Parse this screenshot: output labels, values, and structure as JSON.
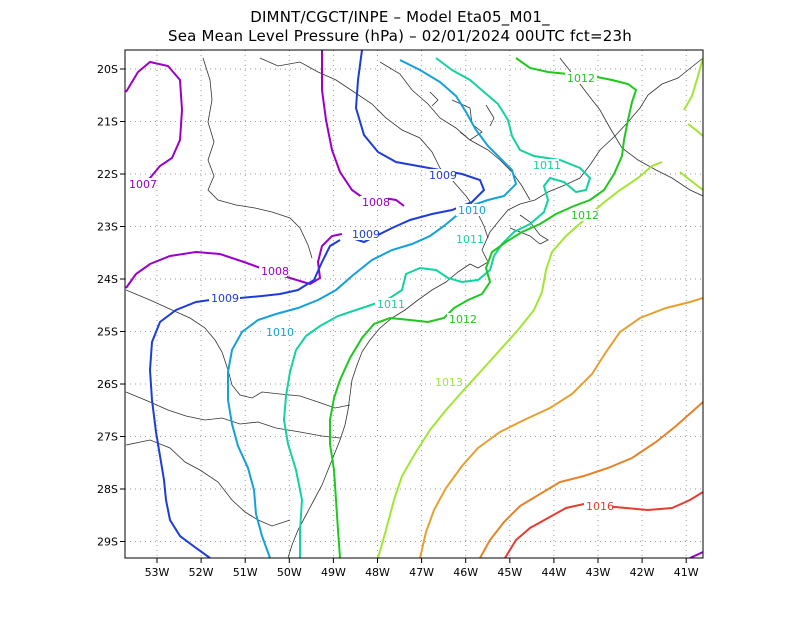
{
  "title": {
    "line1": "DIMNT/CGCT/INPE –  Model Eta05_M01_",
    "line2": "Sea Mean Level Pressure (hPa) – 02/01/2024 00UTC fct=23h"
  },
  "map": {
    "lon_ticks": [
      "53W",
      "52W",
      "51W",
      "50W",
      "49W",
      "48W",
      "47W",
      "46W",
      "45W",
      "44W",
      "43W",
      "42W",
      "41W"
    ],
    "lat_ticks": [
      "20S",
      "21S",
      "22S",
      "23S",
      "24S",
      "25S",
      "26S",
      "27S",
      "28S",
      "29S"
    ],
    "contour_labels": [
      {
        "text": "1007",
        "color": "#9b00c8"
      },
      {
        "text": "1008",
        "color": "#9b00c8"
      },
      {
        "text": "1008",
        "color": "#9b00c8"
      },
      {
        "text": "1009",
        "color": "#1e3cd8"
      },
      {
        "text": "1009",
        "color": "#1e3cd8"
      },
      {
        "text": "1009",
        "color": "#1e3cd8"
      },
      {
        "text": "1010",
        "color": "#14a0dc"
      },
      {
        "text": "1010",
        "color": "#14a0dc"
      },
      {
        "text": "1011",
        "color": "#14d2a0"
      },
      {
        "text": "1011",
        "color": "#14d2a0"
      },
      {
        "text": "1011",
        "color": "#14d2a0"
      },
      {
        "text": "1012",
        "color": "#1ec81e"
      },
      {
        "text": "1012",
        "color": "#1ec81e"
      },
      {
        "text": "1012",
        "color": "#1ec81e"
      },
      {
        "text": "1013",
        "color": "#a0e632"
      },
      {
        "text": "1016",
        "color": "#e63c32"
      }
    ],
    "colors": {
      "c1007": "#9b00c8",
      "c1008": "#9b00c8",
      "c1009": "#1e3cd8",
      "c1010": "#14a0dc",
      "c1011": "#14d2a0",
      "c1012": "#1ec81e",
      "c1013": "#a0e632",
      "c1014": "#e6a032",
      "c1015": "#e68228",
      "c1016": "#e63c32",
      "grid": "#9a9a9a",
      "border": "#000000"
    }
  }
}
